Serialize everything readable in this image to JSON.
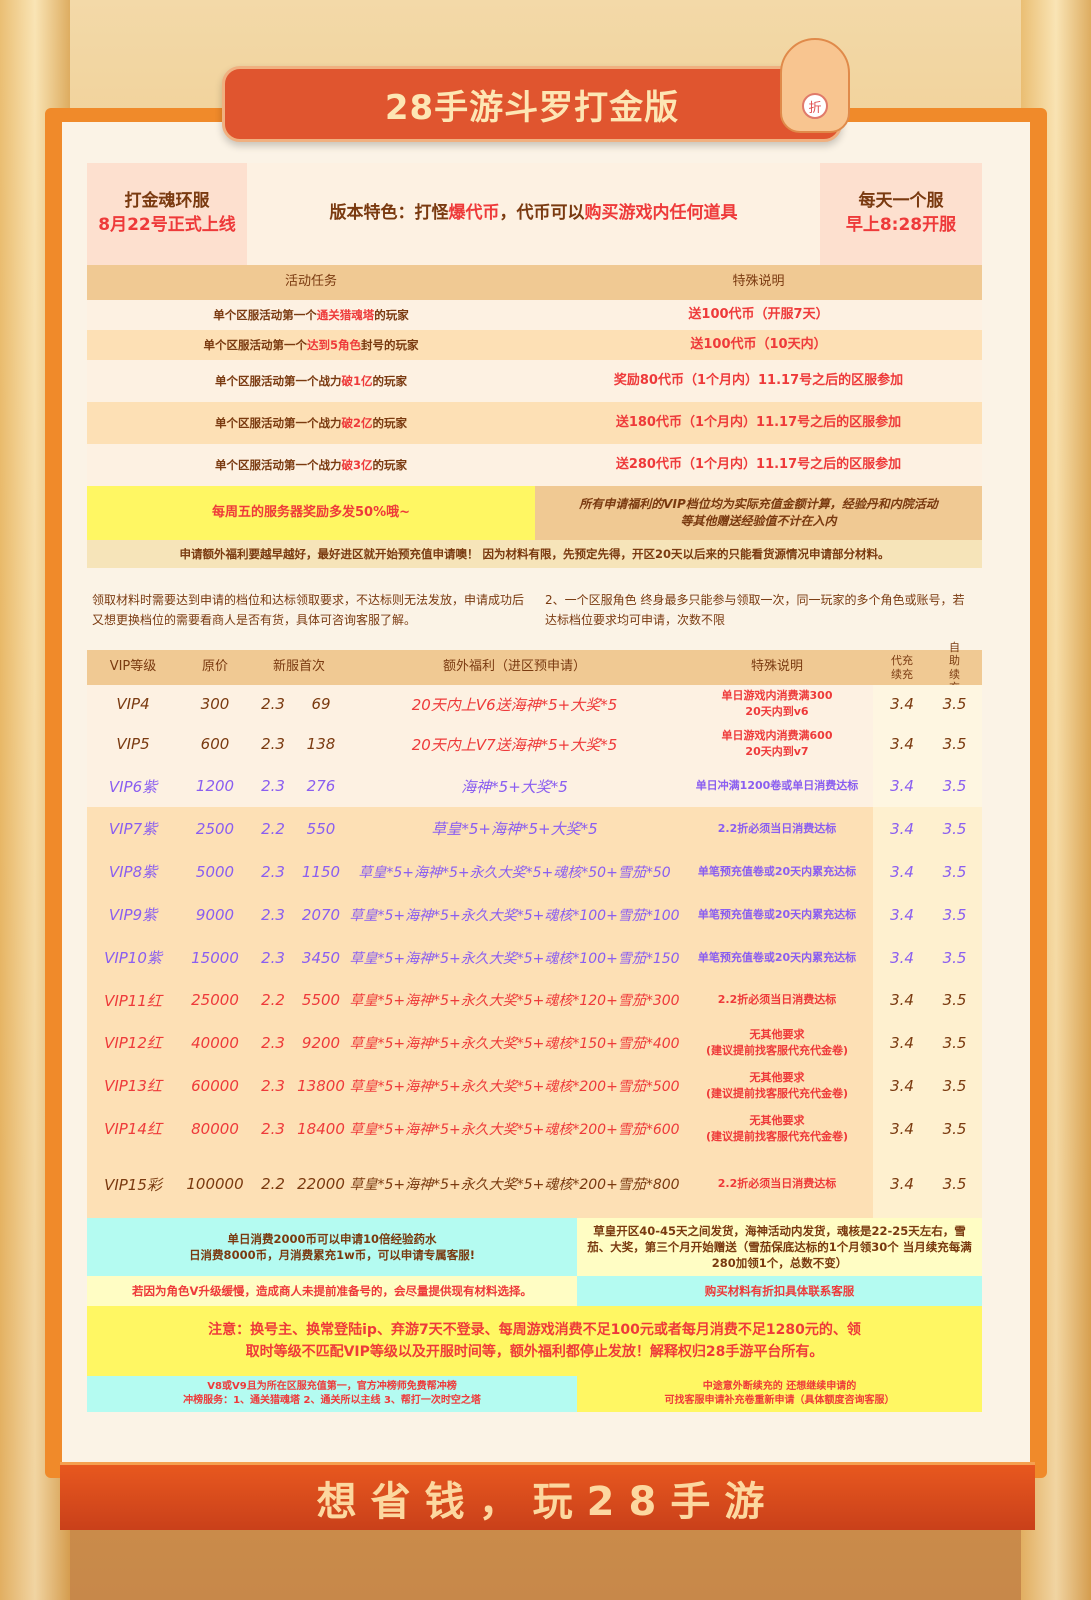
{
  "title": "28手游斗罗打金版",
  "mascot_badge": "折",
  "info": {
    "left_line1": "打金魂环服",
    "left_line2": "8月22号正式上线",
    "center_prefix": "版本特色：打怪",
    "center_red1": "爆代币",
    "center_mid": "，代币可以",
    "center_red2": "购买游戏内任何道具",
    "right_line1": "每天一个服",
    "right_line2": "早上8:28开服"
  },
  "activity": {
    "headers": [
      "活动任务",
      "特殊说明"
    ],
    "rows": [
      {
        "pre": "单个区服活动第一个",
        "hl": "通关猎魂塔",
        "post": "的玩家",
        "note": "送100代币（开服7天）"
      },
      {
        "pre": "单个区服活动第一个",
        "hl": "达到5角色",
        "post": "封号的玩家",
        "note": "送100代币（10天内）"
      },
      {
        "pre": "单个区服活动第一个战力",
        "hl": "破1亿",
        "post": "的玩家",
        "note": "奖励80代币（1个月内）11.17号之后的区服参加"
      },
      {
        "pre": "单个区服活动第一个战力",
        "hl": "破2亿",
        "post": "的玩家",
        "note": "送180代币（1个月内）11.17号之后的区服参加"
      },
      {
        "pre": "单个区服活动第一个战力",
        "hl": "破3亿",
        "post": "的玩家",
        "note": "送280代币（1个月内）11.17号之后的区服参加"
      }
    ]
  },
  "friday_note": "每周五的服务器奖励多发50%哦~",
  "vip_calc_note": "所有申请福利的VIP档位均为实际充值金额计算，经验丹和内院活动等其他赠送经验值不计在入内",
  "apply_note": "申请额外福利要越早越好，最好进区就开始预充值申请噢！ 因为材料有限，先预定先得，开区20天以后来的只能看货源情况申请部分材料。",
  "rule1": "领取材料时需要达到申请的档位和达标领取要求，不达标则无法发放，申请成功后又想更换档位的需要看商人是否有货，具体可咨询客服了解。",
  "rule2": "2、一个区服角色 终身最多只能参与领取一次，同一玩家的多个角色或账号，若达标档位要求均可申请，次数不限",
  "vip_table": {
    "headers": [
      "VIP等级",
      "原价",
      "新服首次",
      "额外福利（进区预申请）",
      "特殊说明",
      "代充续充",
      "自助续充"
    ],
    "rows": [
      {
        "level": "VIP4",
        "price": "300",
        "rate": "2.3",
        "first": "69",
        "bonus": "20天内上V6送海神*5+大奖*5",
        "note": "单日游戏内消费满300\n20天内到v6",
        "dc": "3.4",
        "zz": "3.5",
        "tone": "brown",
        "bonus_tone": "red"
      },
      {
        "level": "VIP5",
        "price": "600",
        "rate": "2.3",
        "first": "138",
        "bonus": "20天内上V7送海神*5+大奖*5",
        "note": "单日游戏内消费满600\n20天内到v7",
        "dc": "3.4",
        "zz": "3.5",
        "tone": "brown",
        "bonus_tone": "red"
      },
      {
        "level": "VIP6紫",
        "price": "1200",
        "rate": "2.3",
        "first": "276",
        "bonus": "海神*5+大奖*5",
        "note": "单日冲满1200卷或单日消费达标",
        "dc": "3.4",
        "zz": "3.5",
        "tone": "purple",
        "bonus_tone": "purple"
      },
      {
        "level": "VIP7紫",
        "price": "2500",
        "rate": "2.2",
        "first": "550",
        "bonus": "草皇*5+海神*5+大奖*5",
        "note": "2.2折必须当日消费达标",
        "dc": "3.4",
        "zz": "3.5",
        "tone": "purple",
        "bonus_tone": "purple"
      },
      {
        "level": "VIP8紫",
        "price": "5000",
        "rate": "2.3",
        "first": "1150",
        "bonus": "草皇*5+海神*5+永久大奖*5+魂核*50+雪茄*50",
        "note": "单笔预充值卷或20天内累充达标",
        "dc": "3.4",
        "zz": "3.5",
        "tone": "purple",
        "bonus_tone": "purple"
      },
      {
        "level": "VIP9紫",
        "price": "9000",
        "rate": "2.3",
        "first": "2070",
        "bonus": "草皇*5+海神*5+永久大奖*5+魂核*100+雪茄*100",
        "note": "单笔预充值卷或20天内累充达标",
        "dc": "3.4",
        "zz": "3.5",
        "tone": "purple",
        "bonus_tone": "purple"
      },
      {
        "level": "VIP10紫",
        "price": "15000",
        "rate": "2.3",
        "first": "3450",
        "bonus": "草皇*5+海神*5+永久大奖*5+魂核*100+雪茄*150",
        "note": "单笔预充值卷或20天内累充达标",
        "dc": "3.4",
        "zz": "3.5",
        "tone": "purple",
        "bonus_tone": "purple"
      },
      {
        "level": "VIP11红",
        "price": "25000",
        "rate": "2.2",
        "first": "5500",
        "bonus": "草皇*5+海神*5+永久大奖*5+魂核*120+雪茄*300",
        "note": "2.2折必须当日消费达标",
        "dc": "3.4",
        "zz": "3.5",
        "tone": "red",
        "bonus_tone": "red"
      },
      {
        "level": "VIP12红",
        "price": "40000",
        "rate": "2.3",
        "first": "9200",
        "bonus": "草皇*5+海神*5+永久大奖*5+魂核*150+雪茄*400",
        "note": "无其他要求\n(建议提前找客服代充代金卷)",
        "dc": "3.4",
        "zz": "3.5",
        "tone": "red",
        "bonus_tone": "red"
      },
      {
        "level": "VIP13红",
        "price": "60000",
        "rate": "2.3",
        "first": "13800",
        "bonus": "草皇*5+海神*5+永久大奖*5+魂核*200+雪茄*500",
        "note": "无其他要求\n(建议提前找客服代充代金卷)",
        "dc": "3.4",
        "zz": "3.5",
        "tone": "red",
        "bonus_tone": "red"
      },
      {
        "level": "VIP14红",
        "price": "80000",
        "rate": "2.3",
        "first": "18400",
        "bonus": "草皇*5+海神*5+永久大奖*5+魂核*200+雪茄*600",
        "note": "无其他要求\n(建议提前找客服代充代金卷)",
        "dc": "3.4",
        "zz": "3.5",
        "tone": "red",
        "bonus_tone": "red"
      },
      {
        "level": "VIP15彩",
        "price": "100000",
        "rate": "2.2",
        "first": "22000",
        "bonus": "草皇*5+海神*5+永久大奖*5+魂核*200+雪茄*800",
        "note": "2.2折必须当日消费达标",
        "dc": "3.4",
        "zz": "3.5",
        "tone": "brown",
        "bonus_tone": "brown",
        "note_tone": "red"
      }
    ]
  },
  "extra": {
    "potion": "单日消费2000币可以申请10倍经验药水\n日消费8000币，月消费累充1w币，可以申请专属客服!",
    "delivery": "草皇开区40-45天之间发货，海神活动内发货，魂核是22-25天左右，雪茄、大奖，第三个月开始赠送（雪茄保底达标的1个月领30个 当月续充每满280加领1个，总数不变）",
    "slow_upgrade": "若因为角色V升级缓慢，造成商人未提前准备号的，会尽量提供现有材料选择。",
    "discount": "购买材料有折扣具体联系客服",
    "warning": "注意：换号主、换常登陆ip、弃游7天不登录、每周游戏消费不足100元或者每月消费不足1280元的、领取时等级不匹配VIP等级以及开服时间等，额外福利都停止发放！解释权归28手游平台所有。",
    "rank": "V8或V9且为所在区服充值第一，官方冲榜师免费帮冲榜\n冲榜服务：1、通关猎魂塔 2、通关所以主线 3、帮打一次时空之塔",
    "renew": "中途意外断续充的 还想继续申请的\n可找客服申请补充卷重新申请（具体额度咨询客服）"
  },
  "footer_slogan": "想省钱，玩28手游",
  "colors": {
    "frame": "#f08a2a",
    "banner": "#e0552f",
    "brown": "#7a3a10",
    "red": "#ee3a3a",
    "purple": "#8a5ef0",
    "cyan": "#b4fbf1",
    "yellow": "#fff763"
  }
}
